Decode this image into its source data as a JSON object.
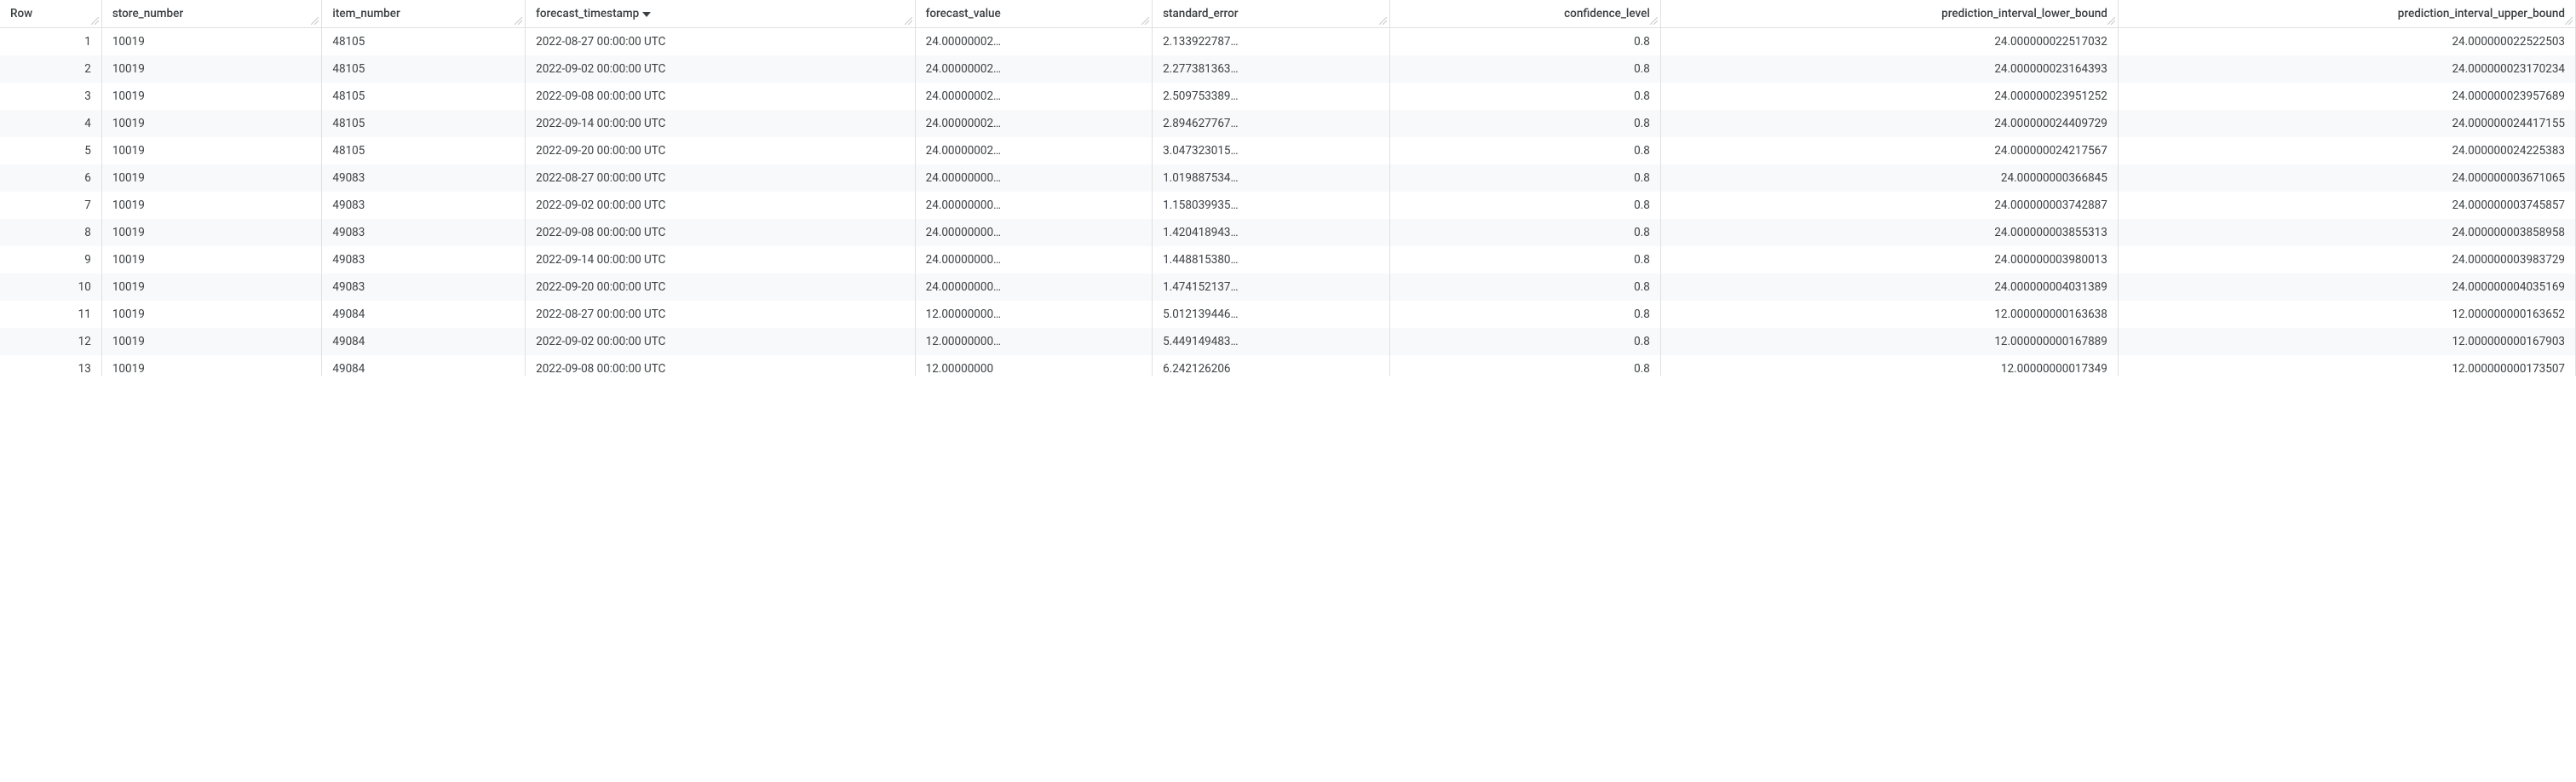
{
  "table": {
    "columns": [
      {
        "key": "row",
        "label": "Row",
        "class": "col-row",
        "align": "right"
      },
      {
        "key": "store_number",
        "label": "store_number",
        "class": "col-store",
        "align": "left"
      },
      {
        "key": "item_number",
        "label": "item_number",
        "class": "col-item",
        "align": "left"
      },
      {
        "key": "forecast_timestamp",
        "label": "forecast_timestamp",
        "class": "col-ts",
        "align": "left",
        "sort": "desc"
      },
      {
        "key": "forecast_value",
        "label": "forecast_value",
        "class": "col-fv",
        "align": "left"
      },
      {
        "key": "standard_error",
        "label": "standard_error",
        "class": "col-se",
        "align": "left"
      },
      {
        "key": "confidence_level",
        "label": "confidence_level",
        "class": "col-cl",
        "align": "right"
      },
      {
        "key": "prediction_interval_lower_bound",
        "label": "prediction_interval_lower_bound",
        "class": "col-lb",
        "align": "right"
      },
      {
        "key": "prediction_interval_upper_bound",
        "label": "prediction_interval_upper_bound",
        "class": "col-ub",
        "align": "right"
      }
    ],
    "rows": [
      {
        "row": "1",
        "store_number": "10019",
        "item_number": "48105",
        "forecast_timestamp": "2022-08-27 00:00:00 UTC",
        "forecast_value": "24.00000002…",
        "standard_error": "2.133922787…",
        "confidence_level": "0.8",
        "prediction_interval_lower_bound": "24.000000022517032",
        "prediction_interval_upper_bound": "24.000000022522503"
      },
      {
        "row": "2",
        "store_number": "10019",
        "item_number": "48105",
        "forecast_timestamp": "2022-09-02 00:00:00 UTC",
        "forecast_value": "24.00000002…",
        "standard_error": "2.277381363…",
        "confidence_level": "0.8",
        "prediction_interval_lower_bound": "24.000000023164393",
        "prediction_interval_upper_bound": "24.000000023170234"
      },
      {
        "row": "3",
        "store_number": "10019",
        "item_number": "48105",
        "forecast_timestamp": "2022-09-08 00:00:00 UTC",
        "forecast_value": "24.00000002…",
        "standard_error": "2.509753389…",
        "confidence_level": "0.8",
        "prediction_interval_lower_bound": "24.000000023951252",
        "prediction_interval_upper_bound": "24.000000023957689"
      },
      {
        "row": "4",
        "store_number": "10019",
        "item_number": "48105",
        "forecast_timestamp": "2022-09-14 00:00:00 UTC",
        "forecast_value": "24.00000002…",
        "standard_error": "2.894627767…",
        "confidence_level": "0.8",
        "prediction_interval_lower_bound": "24.000000024409729",
        "prediction_interval_upper_bound": "24.000000024417155"
      },
      {
        "row": "5",
        "store_number": "10019",
        "item_number": "48105",
        "forecast_timestamp": "2022-09-20 00:00:00 UTC",
        "forecast_value": "24.00000002…",
        "standard_error": "3.047323015…",
        "confidence_level": "0.8",
        "prediction_interval_lower_bound": "24.000000024217567",
        "prediction_interval_upper_bound": "24.000000024225383"
      },
      {
        "row": "6",
        "store_number": "10019",
        "item_number": "49083",
        "forecast_timestamp": "2022-08-27 00:00:00 UTC",
        "forecast_value": "24.00000000…",
        "standard_error": "1.019887534…",
        "confidence_level": "0.8",
        "prediction_interval_lower_bound": "24.00000000366845",
        "prediction_interval_upper_bound": "24.000000003671065"
      },
      {
        "row": "7",
        "store_number": "10019",
        "item_number": "49083",
        "forecast_timestamp": "2022-09-02 00:00:00 UTC",
        "forecast_value": "24.00000000…",
        "standard_error": "1.158039935…",
        "confidence_level": "0.8",
        "prediction_interval_lower_bound": "24.000000003742887",
        "prediction_interval_upper_bound": "24.000000003745857"
      },
      {
        "row": "8",
        "store_number": "10019",
        "item_number": "49083",
        "forecast_timestamp": "2022-09-08 00:00:00 UTC",
        "forecast_value": "24.00000000…",
        "standard_error": "1.420418943…",
        "confidence_level": "0.8",
        "prediction_interval_lower_bound": "24.000000003855313",
        "prediction_interval_upper_bound": "24.000000003858958"
      },
      {
        "row": "9",
        "store_number": "10019",
        "item_number": "49083",
        "forecast_timestamp": "2022-09-14 00:00:00 UTC",
        "forecast_value": "24.00000000…",
        "standard_error": "1.448815380…",
        "confidence_level": "0.8",
        "prediction_interval_lower_bound": "24.000000003980013",
        "prediction_interval_upper_bound": "24.000000003983729"
      },
      {
        "row": "10",
        "store_number": "10019",
        "item_number": "49083",
        "forecast_timestamp": "2022-09-20 00:00:00 UTC",
        "forecast_value": "24.00000000…",
        "standard_error": "1.474152137…",
        "confidence_level": "0.8",
        "prediction_interval_lower_bound": "24.000000004031389",
        "prediction_interval_upper_bound": "24.000000004035169"
      },
      {
        "row": "11",
        "store_number": "10019",
        "item_number": "49084",
        "forecast_timestamp": "2022-08-27 00:00:00 UTC",
        "forecast_value": "12.00000000…",
        "standard_error": "5.012139446…",
        "confidence_level": "0.8",
        "prediction_interval_lower_bound": "12.000000000163638",
        "prediction_interval_upper_bound": "12.000000000163652"
      },
      {
        "row": "12",
        "store_number": "10019",
        "item_number": "49084",
        "forecast_timestamp": "2022-09-02 00:00:00 UTC",
        "forecast_value": "12.00000000…",
        "standard_error": "5.449149483…",
        "confidence_level": "0.8",
        "prediction_interval_lower_bound": "12.000000000167889",
        "prediction_interval_upper_bound": "12.000000000167903"
      }
    ],
    "cutoff_row": {
      "row": "13",
      "store_number": "10019",
      "item_number": "49084",
      "forecast_timestamp": "2022-09-08 00:00:00 UTC",
      "forecast_value": "12.00000000",
      "standard_error": "6.242126206",
      "confidence_level": "0.8",
      "prediction_interval_lower_bound": "12.00000000017349",
      "prediction_interval_upper_bound": "12.000000000173507"
    },
    "colors": {
      "border": "#e0e0e0",
      "row_alt_bg": "#f8f9fa",
      "text": "#3c4043",
      "bg": "#ffffff"
    }
  }
}
